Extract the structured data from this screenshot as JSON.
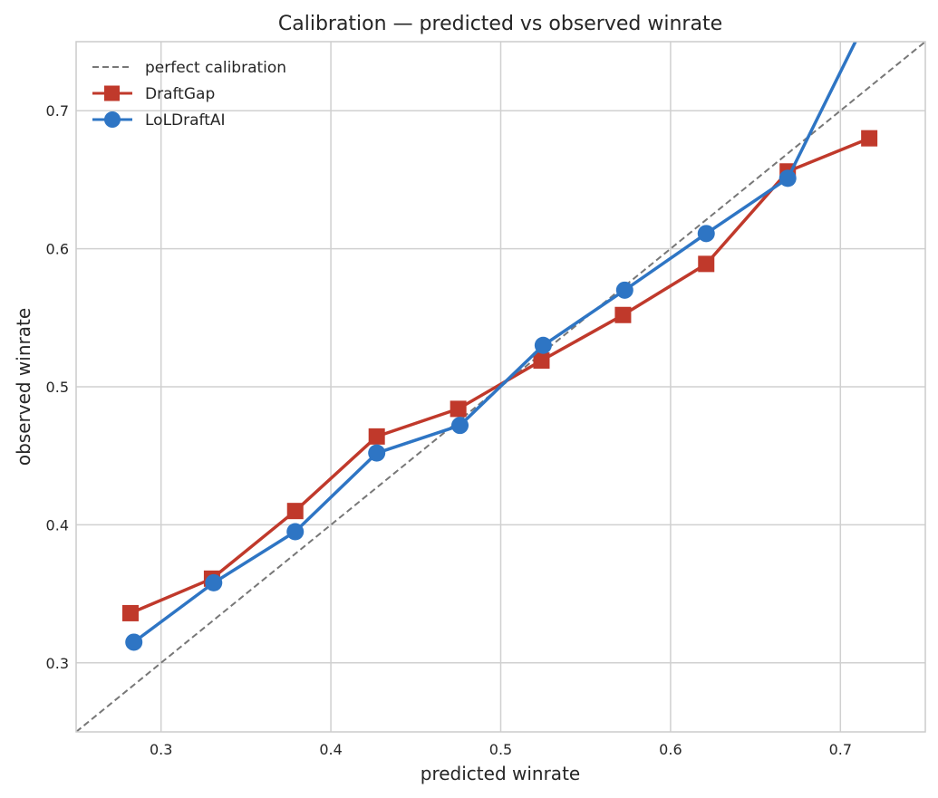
{
  "chart_data": {
    "type": "line",
    "title": "Calibration — predicted vs observed winrate",
    "xlabel": "predicted winrate",
    "ylabel": "observed winrate",
    "xlim": [
      0.25,
      0.75
    ],
    "ylim": [
      0.25,
      0.75
    ],
    "xticks": [
      0.3,
      0.4,
      0.5,
      0.6,
      0.7
    ],
    "yticks": [
      0.3,
      0.4,
      0.5,
      0.6,
      0.7
    ],
    "xtick_labels": [
      "0.3",
      "0.4",
      "0.5",
      "0.6",
      "0.7"
    ],
    "ytick_labels": [
      "0.3",
      "0.4",
      "0.5",
      "0.6",
      "0.7"
    ],
    "grid": true,
    "legend_position": "top-left",
    "reference_line": {
      "name": "perfect calibration",
      "x": [
        0.25,
        0.75
      ],
      "y": [
        0.25,
        0.75
      ],
      "color": "#777777",
      "style": "dashed"
    },
    "series": [
      {
        "name": "DraftGap",
        "color": "#c0392b",
        "marker": "square",
        "x": [
          0.282,
          0.33,
          0.379,
          0.427,
          0.475,
          0.524,
          0.572,
          0.621,
          0.669,
          0.717
        ],
        "y": [
          0.336,
          0.361,
          0.41,
          0.464,
          0.484,
          0.519,
          0.552,
          0.589,
          0.656,
          0.68
        ]
      },
      {
        "name": "LoLDraftAI",
        "color": "#2e75c4",
        "marker": "circle",
        "x": [
          0.284,
          0.331,
          0.379,
          0.427,
          0.476,
          0.525,
          0.573,
          0.621,
          0.669,
          0.725
        ],
        "y": [
          0.315,
          0.358,
          0.395,
          0.452,
          0.472,
          0.53,
          0.57,
          0.611,
          0.651,
          0.79
        ]
      }
    ]
  }
}
